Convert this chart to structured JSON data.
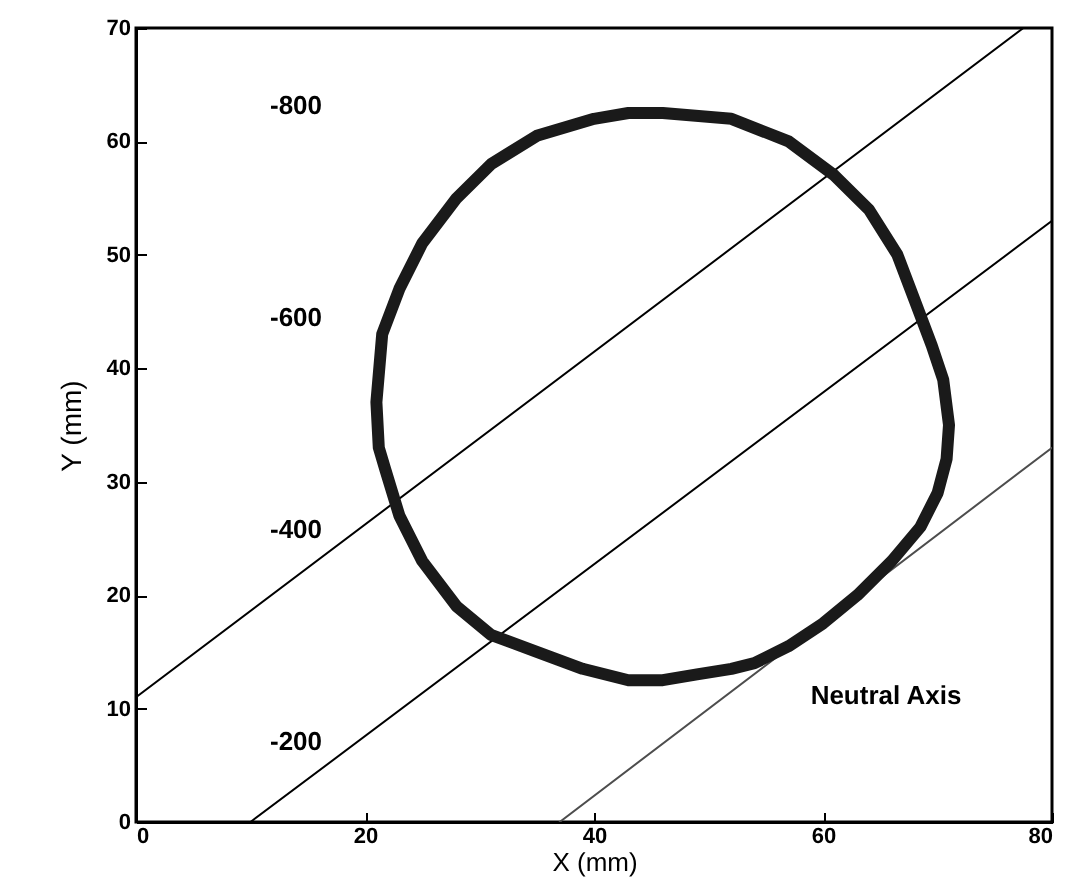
{
  "chart_data": {
    "type": "line",
    "xlabel": "X (mm)",
    "ylabel": "Y (mm)",
    "xlim": [
      0,
      80
    ],
    "xticks": [
      0,
      20,
      40,
      60,
      80
    ],
    "ylim": [
      0,
      70
    ],
    "yticks": [
      0,
      10,
      20,
      30,
      40,
      50,
      60,
      70
    ],
    "grid": false,
    "marker": "none",
    "line_style": "solid",
    "series": [
      {
        "color": "#000000",
        "x": [
          0,
          77.5
        ],
        "values": [
          11,
          70
        ]
      },
      {
        "color": "#000000",
        "x": [
          10,
          80
        ],
        "values": [
          0,
          53
        ]
      },
      {
        "color": "#4d4d4d",
        "x": [
          37,
          80
        ],
        "values": [
          0,
          33
        ]
      }
    ],
    "annotations": [
      "-800",
      "-600",
      "-400",
      "-200",
      "Neutral Axis"
    ]
  }
}
